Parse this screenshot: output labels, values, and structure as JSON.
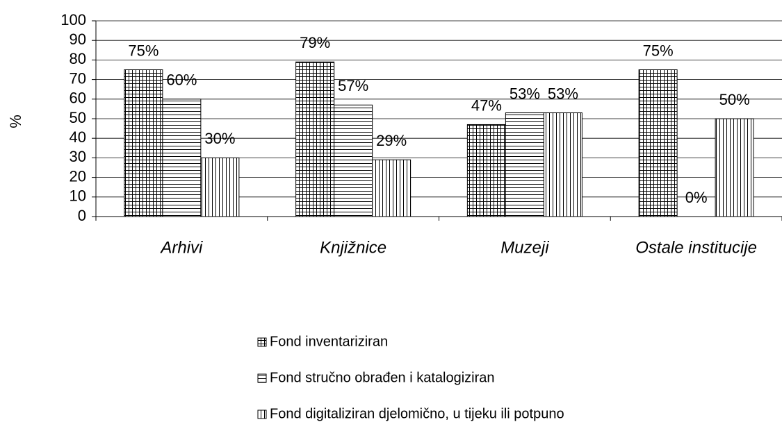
{
  "chart_data": {
    "type": "bar",
    "y_label": "%",
    "categories": [
      "Arhivi",
      "Knjižnice",
      "Muzeji",
      "Ostale institucije"
    ],
    "series": [
      {
        "name": "Fond inventariziran",
        "color": "#000000",
        "pattern": "grid",
        "values": [
          75,
          79,
          47,
          75
        ],
        "value_labels": [
          "75%",
          "79%",
          "47%",
          "75%"
        ]
      },
      {
        "name": "Fond stručno obrađen i katalogiziran",
        "color": "#000000",
        "pattern": "horizontal",
        "values": [
          60,
          57,
          53,
          0
        ],
        "value_labels": [
          "60%",
          "57%",
          "53%",
          "0%"
        ]
      },
      {
        "name": "Fond digitaliziran djelomično, u tijeku ili potpuno",
        "color": "#000000",
        "pattern": "vertical",
        "values": [
          30,
          29,
          53,
          50
        ],
        "value_labels": [
          "30%",
          "29%",
          "53%",
          "50%"
        ]
      }
    ],
    "ylim": [
      0,
      100
    ],
    "yticks": [
      0,
      10,
      20,
      30,
      40,
      50,
      60,
      70,
      80,
      90,
      100
    ],
    "grid": true,
    "legend": "bottom"
  }
}
